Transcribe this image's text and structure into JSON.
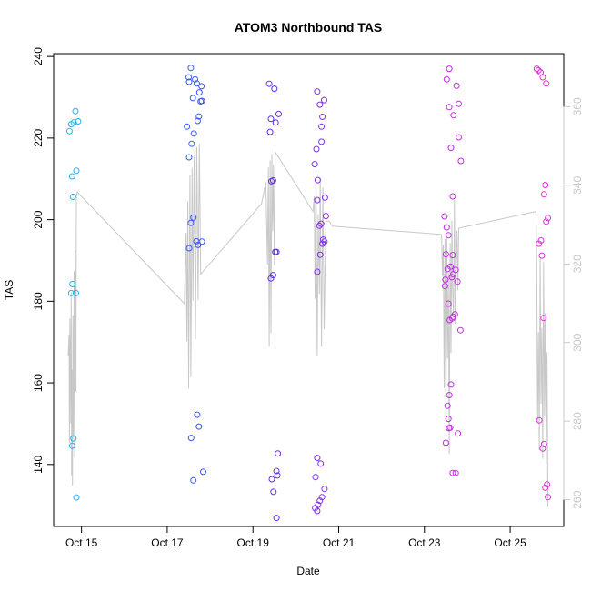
{
  "chart_data": {
    "type": "scatter",
    "title": "ATOM3 Northbound TAS",
    "xlabel": "Date",
    "ylabel": "TAS",
    "x_ticks": [
      "Oct 15",
      "Oct 17",
      "Oct 19",
      "Oct 21",
      "Oct 23",
      "Oct 25"
    ],
    "x_tick_values": [
      15,
      17,
      19,
      21,
      23,
      25
    ],
    "xlim": [
      14.35,
      26.25
    ],
    "left_axis": {
      "ylim": [
        124.8,
        240.7
      ],
      "ticks": [
        140,
        160,
        180,
        200,
        220,
        240
      ]
    },
    "right_axis": {
      "ylim": [
        253.2,
        373.5
      ],
      "ticks": [
        260,
        280,
        300,
        320,
        340,
        360
      ],
      "color": "#c8c8c8"
    },
    "grid": false,
    "legend": "none",
    "point_gradient": [
      "#22b8f0",
      "#2a6ef2",
      "#5a2ff0",
      "#9a2ee8",
      "#c32ee0",
      "#e233d8"
    ],
    "points": [
      {
        "x": 14.72,
        "y": 221.7
      },
      {
        "x": 14.76,
        "y": 223.4
      },
      {
        "x": 14.82,
        "y": 223.8
      },
      {
        "x": 14.86,
        "y": 226.6
      },
      {
        "x": 14.92,
        "y": 224.1
      },
      {
        "x": 14.78,
        "y": 210.6
      },
      {
        "x": 14.88,
        "y": 212.0
      },
      {
        "x": 14.8,
        "y": 205.6
      },
      {
        "x": 14.79,
        "y": 184.2
      },
      {
        "x": 14.76,
        "y": 182.0
      },
      {
        "x": 14.87,
        "y": 182.0
      },
      {
        "x": 14.81,
        "y": 146.4
      },
      {
        "x": 14.78,
        "y": 144.6
      },
      {
        "x": 14.88,
        "y": 131.9
      },
      {
        "x": 17.55,
        "y": 237.2
      },
      {
        "x": 17.5,
        "y": 234.9
      },
      {
        "x": 17.51,
        "y": 233.8
      },
      {
        "x": 17.65,
        "y": 234.4
      },
      {
        "x": 17.69,
        "y": 233.4
      },
      {
        "x": 17.8,
        "y": 232.7
      },
      {
        "x": 17.75,
        "y": 231.2
      },
      {
        "x": 17.78,
        "y": 229.0
      },
      {
        "x": 17.81,
        "y": 229.1
      },
      {
        "x": 17.6,
        "y": 229.8
      },
      {
        "x": 17.74,
        "y": 225.3
      },
      {
        "x": 17.71,
        "y": 224.2
      },
      {
        "x": 17.46,
        "y": 222.8
      },
      {
        "x": 17.62,
        "y": 221.1
      },
      {
        "x": 17.57,
        "y": 218.6
      },
      {
        "x": 17.51,
        "y": 215.3
      },
      {
        "x": 17.61,
        "y": 200.5
      },
      {
        "x": 17.55,
        "y": 199.2
      },
      {
        "x": 17.68,
        "y": 194.7
      },
      {
        "x": 17.72,
        "y": 193.8
      },
      {
        "x": 17.81,
        "y": 194.6
      },
      {
        "x": 17.51,
        "y": 193.0
      },
      {
        "x": 17.7,
        "y": 152.2
      },
      {
        "x": 17.74,
        "y": 149.3
      },
      {
        "x": 17.56,
        "y": 146.5
      },
      {
        "x": 17.84,
        "y": 138.2
      },
      {
        "x": 17.61,
        "y": 136.1
      },
      {
        "x": 19.38,
        "y": 233.3
      },
      {
        "x": 19.5,
        "y": 232.1
      },
      {
        "x": 19.6,
        "y": 225.9
      },
      {
        "x": 19.42,
        "y": 224.7
      },
      {
        "x": 19.53,
        "y": 223.8
      },
      {
        "x": 19.4,
        "y": 221.5
      },
      {
        "x": 19.43,
        "y": 209.4
      },
      {
        "x": 19.47,
        "y": 209.6
      },
      {
        "x": 19.52,
        "y": 192.1
      },
      {
        "x": 19.55,
        "y": 192.1
      },
      {
        "x": 19.47,
        "y": 186.4
      },
      {
        "x": 19.42,
        "y": 185.6
      },
      {
        "x": 19.58,
        "y": 142.7
      },
      {
        "x": 19.55,
        "y": 138.4
      },
      {
        "x": 19.57,
        "y": 137.3
      },
      {
        "x": 19.44,
        "y": 136.4
      },
      {
        "x": 19.48,
        "y": 133.3
      },
      {
        "x": 19.55,
        "y": 126.9
      },
      {
        "x": 20.5,
        "y": 231.4
      },
      {
        "x": 20.66,
        "y": 229.3
      },
      {
        "x": 20.56,
        "y": 228.2
      },
      {
        "x": 20.62,
        "y": 225.2
      },
      {
        "x": 20.6,
        "y": 222.8
      },
      {
        "x": 20.6,
        "y": 219.1
      },
      {
        "x": 20.48,
        "y": 217.3
      },
      {
        "x": 20.44,
        "y": 213.6
      },
      {
        "x": 20.51,
        "y": 209.7
      },
      {
        "x": 20.68,
        "y": 205.4
      },
      {
        "x": 20.5,
        "y": 204.8
      },
      {
        "x": 20.7,
        "y": 200.9
      },
      {
        "x": 20.59,
        "y": 199.0
      },
      {
        "x": 20.55,
        "y": 198.5
      },
      {
        "x": 20.64,
        "y": 195.1
      },
      {
        "x": 20.67,
        "y": 194.6
      },
      {
        "x": 20.62,
        "y": 194.1
      },
      {
        "x": 20.57,
        "y": 191.4
      },
      {
        "x": 20.5,
        "y": 187.2
      },
      {
        "x": 20.5,
        "y": 141.6
      },
      {
        "x": 20.58,
        "y": 140.2
      },
      {
        "x": 20.46,
        "y": 136.9
      },
      {
        "x": 20.67,
        "y": 134.0
      },
      {
        "x": 20.61,
        "y": 132.0
      },
      {
        "x": 20.56,
        "y": 131.1
      },
      {
        "x": 20.52,
        "y": 130.1
      },
      {
        "x": 20.45,
        "y": 129.3
      },
      {
        "x": 20.5,
        "y": 128.6
      },
      {
        "x": 23.58,
        "y": 237.0
      },
      {
        "x": 23.52,
        "y": 234.4
      },
      {
        "x": 23.75,
        "y": 232.8
      },
      {
        "x": 23.8,
        "y": 228.4
      },
      {
        "x": 23.58,
        "y": 227.6
      },
      {
        "x": 23.68,
        "y": 225.6
      },
      {
        "x": 23.8,
        "y": 220.2
      },
      {
        "x": 23.62,
        "y": 217.6
      },
      {
        "x": 23.85,
        "y": 214.4
      },
      {
        "x": 23.66,
        "y": 205.7
      },
      {
        "x": 23.47,
        "y": 200.8
      },
      {
        "x": 23.52,
        "y": 198.1
      },
      {
        "x": 23.56,
        "y": 196.2
      },
      {
        "x": 23.5,
        "y": 191.5
      },
      {
        "x": 23.66,
        "y": 191.3
      },
      {
        "x": 23.61,
        "y": 188.5
      },
      {
        "x": 23.54,
        "y": 187.9
      },
      {
        "x": 23.73,
        "y": 187.7
      },
      {
        "x": 23.67,
        "y": 186.6
      },
      {
        "x": 23.64,
        "y": 185.9
      },
      {
        "x": 23.49,
        "y": 185.3
      },
      {
        "x": 23.77,
        "y": 184.8
      },
      {
        "x": 23.48,
        "y": 183.7
      },
      {
        "x": 23.56,
        "y": 179.4
      },
      {
        "x": 23.71,
        "y": 176.8
      },
      {
        "x": 23.67,
        "y": 176.2
      },
      {
        "x": 23.65,
        "y": 175.8
      },
      {
        "x": 23.59,
        "y": 175.4
      },
      {
        "x": 23.84,
        "y": 172.9
      },
      {
        "x": 23.62,
        "y": 159.6
      },
      {
        "x": 23.58,
        "y": 157.0
      },
      {
        "x": 23.54,
        "y": 154.4
      },
      {
        "x": 23.56,
        "y": 151.2
      },
      {
        "x": 23.6,
        "y": 149.0
      },
      {
        "x": 23.57,
        "y": 148.9
      },
      {
        "x": 23.78,
        "y": 147.6
      },
      {
        "x": 23.5,
        "y": 145.3
      },
      {
        "x": 23.66,
        "y": 137.9
      },
      {
        "x": 23.73,
        "y": 137.9
      },
      {
        "x": 25.62,
        "y": 237.0
      },
      {
        "x": 25.66,
        "y": 236.6
      },
      {
        "x": 25.71,
        "y": 236.1
      },
      {
        "x": 25.76,
        "y": 234.9
      },
      {
        "x": 25.84,
        "y": 233.4
      },
      {
        "x": 25.82,
        "y": 208.5
      },
      {
        "x": 25.79,
        "y": 206.2
      },
      {
        "x": 25.88,
        "y": 200.4
      },
      {
        "x": 25.84,
        "y": 199.5
      },
      {
        "x": 25.72,
        "y": 194.9
      },
      {
        "x": 25.67,
        "y": 194.1
      },
      {
        "x": 25.74,
        "y": 191.2
      },
      {
        "x": 25.78,
        "y": 175.9
      },
      {
        "x": 25.68,
        "y": 150.8
      },
      {
        "x": 25.79,
        "y": 145.0
      },
      {
        "x": 25.76,
        "y": 143.9
      },
      {
        "x": 25.86,
        "y": 135.1
      },
      {
        "x": 25.82,
        "y": 134.3
      },
      {
        "x": 25.88,
        "y": 132.0
      }
    ],
    "line_series": [
      [
        14.69,
        166.6
      ],
      [
        14.71,
        171.8
      ],
      [
        14.72,
        145.3
      ],
      [
        14.73,
        175.8
      ],
      [
        14.75,
        150.1
      ],
      [
        14.76,
        182.2
      ],
      [
        14.77,
        137.3
      ],
      [
        14.78,
        163.2
      ],
      [
        14.79,
        134.8
      ],
      [
        14.8,
        176.6
      ],
      [
        14.81,
        146.6
      ],
      [
        14.83,
        187.5
      ],
      [
        14.84,
        141.6
      ],
      [
        14.85,
        192.5
      ],
      [
        14.87,
        157.8
      ],
      [
        14.88,
        205.5
      ],
      [
        14.9,
        206.8
      ],
      [
        17.4,
        179.4
      ],
      [
        17.44,
        196.8
      ],
      [
        17.46,
        170.2
      ],
      [
        17.48,
        204.5
      ],
      [
        17.5,
        158.6
      ],
      [
        17.53,
        210.9
      ],
      [
        17.55,
        161.4
      ],
      [
        17.58,
        212.7
      ],
      [
        17.6,
        180.1
      ],
      [
        17.63,
        215.7
      ],
      [
        17.66,
        170.6
      ],
      [
        17.69,
        217.8
      ],
      [
        17.72,
        180.2
      ],
      [
        17.75,
        218.6
      ],
      [
        17.78,
        186.6
      ],
      [
        19.2,
        203.9
      ],
      [
        19.3,
        209.2
      ],
      [
        19.34,
        189.0
      ],
      [
        19.36,
        212.8
      ],
      [
        19.38,
        168.9
      ],
      [
        19.4,
        214.5
      ],
      [
        19.42,
        172.2
      ],
      [
        19.44,
        216.1
      ],
      [
        19.46,
        197.2
      ],
      [
        19.48,
        213.4
      ],
      [
        19.5,
        188.7
      ],
      [
        19.52,
        216.6
      ],
      [
        20.4,
        202.0
      ],
      [
        20.43,
        205.7
      ],
      [
        20.45,
        180.6
      ],
      [
        20.47,
        211.3
      ],
      [
        20.5,
        166.5
      ],
      [
        20.52,
        201.3
      ],
      [
        20.55,
        181.8
      ],
      [
        20.57,
        210.2
      ],
      [
        20.6,
        168.9
      ],
      [
        20.63,
        207.9
      ],
      [
        20.66,
        173.1
      ],
      [
        20.7,
        199.7
      ],
      [
        20.78,
        199.6
      ],
      [
        20.85,
        198.4
      ],
      [
        23.4,
        196.4
      ],
      [
        23.42,
        186.2
      ],
      [
        23.44,
        193.8
      ],
      [
        23.46,
        158.7
      ],
      [
        23.48,
        195.3
      ],
      [
        23.5,
        151.4
      ],
      [
        23.52,
        196.4
      ],
      [
        23.54,
        166.0
      ],
      [
        23.56,
        187.0
      ],
      [
        23.58,
        142.6
      ],
      [
        23.6,
        194.3
      ],
      [
        23.62,
        167.4
      ],
      [
        23.64,
        199.8
      ],
      [
        23.66,
        182.1
      ],
      [
        23.68,
        176.1
      ],
      [
        23.7,
        204.8
      ],
      [
        23.72,
        174.5
      ],
      [
        23.74,
        189.8
      ],
      [
        23.76,
        197.3
      ],
      [
        23.78,
        182.7
      ],
      [
        23.8,
        197.9
      ],
      [
        25.6,
        202.0
      ],
      [
        25.62,
        189.6
      ],
      [
        25.64,
        150.4
      ],
      [
        25.66,
        172.4
      ],
      [
        25.68,
        143.5
      ],
      [
        25.7,
        190.9
      ],
      [
        25.72,
        154.9
      ],
      [
        25.74,
        173.5
      ],
      [
        25.76,
        141.4
      ],
      [
        25.78,
        189.6
      ],
      [
        25.8,
        151.8
      ],
      [
        25.82,
        177.1
      ],
      [
        25.84,
        140.2
      ],
      [
        25.86,
        167.5
      ],
      [
        25.88,
        129.6
      ]
    ],
    "line_color": "#c8c8c8"
  }
}
